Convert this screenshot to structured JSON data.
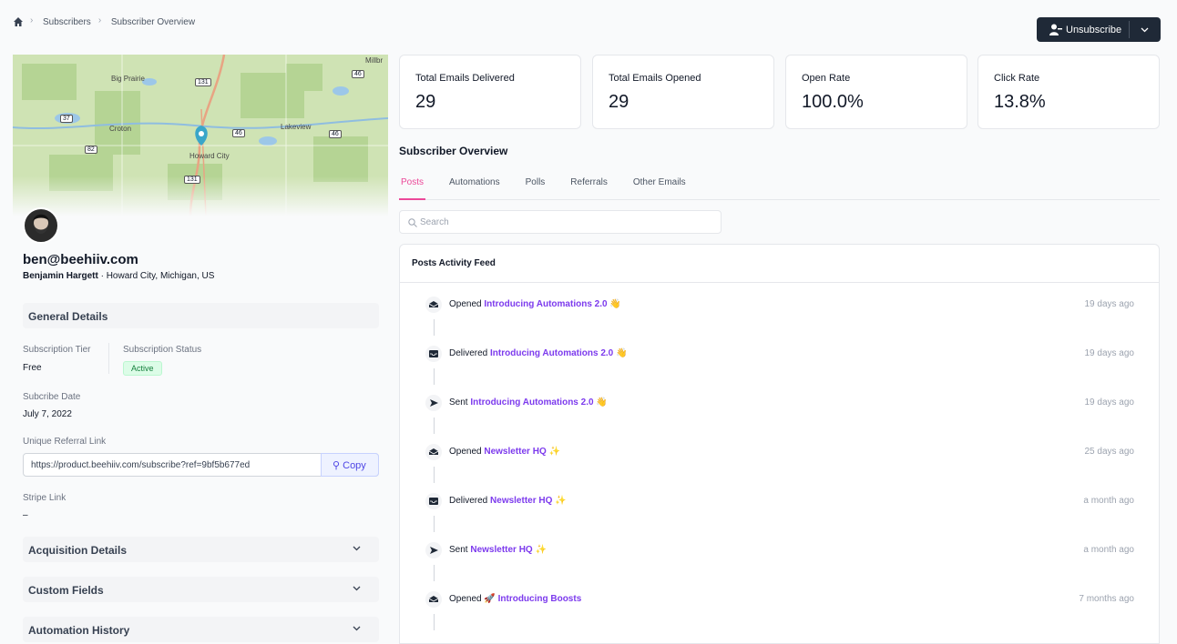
{
  "breadcrumb": [
    "Subscribers",
    "Subscriber Overview"
  ],
  "actions": {
    "unsubscribe": "Unsubscribe"
  },
  "map": {
    "places": [
      "Millbr",
      "Big Prairie",
      "Croton",
      "Lakeview",
      "Howard City"
    ],
    "roads": [
      "131",
      "46",
      "37",
      "46",
      "46",
      "82",
      "131"
    ]
  },
  "stats": [
    {
      "label": "Total Emails Delivered",
      "value": "29"
    },
    {
      "label": "Total Emails Opened",
      "value": "29"
    },
    {
      "label": "Open Rate",
      "value": "100.0%"
    },
    {
      "label": "Click Rate",
      "value": "13.8%"
    }
  ],
  "profile": {
    "email": "ben@beehiiv.com",
    "name": "Benjamin Hargett",
    "location": "Howard City, Michigan, US"
  },
  "general_details": {
    "title": "General Details",
    "tier_label": "Subscription Tier",
    "tier": "Free",
    "status_label": "Subscription Status",
    "status": "Active",
    "date_label": "Subcribe Date",
    "date": "July 7, 2022",
    "referral_label": "Unique Referral Link",
    "referral": "https://product.beehiiv.com/subscribe?ref=9bf5b677ed",
    "copy": "Copy",
    "stripe_label": "Stripe Link",
    "stripe": "–"
  },
  "sections": [
    "Acquisition Details",
    "Custom Fields",
    "Automation History"
  ],
  "overview": {
    "title": "Subscriber Overview",
    "tabs": [
      "Posts",
      "Automations",
      "Polls",
      "Referrals",
      "Other Emails"
    ],
    "search": "Search",
    "feed_title": "Posts Activity Feed",
    "items": [
      {
        "action": "Opened",
        "post": "Introducing Automations 2.0 👋",
        "time": "19 days ago"
      },
      {
        "action": "Delivered",
        "post": "Introducing Automations 2.0 👋",
        "time": "19 days ago"
      },
      {
        "action": "Sent",
        "post": "Introducing Automations 2.0 👋",
        "time": "19 days ago"
      },
      {
        "action": "Opened",
        "post": "Newsletter HQ ✨",
        "time": "25 days ago"
      },
      {
        "action": "Delivered",
        "post": "Newsletter HQ ✨",
        "time": "a month ago"
      },
      {
        "action": "Sent",
        "post": "Newsletter HQ ✨",
        "time": "a month ago"
      },
      {
        "action": "Opened",
        "post": "🚀 Introducing Boosts",
        "time": "7 months ago"
      }
    ]
  }
}
